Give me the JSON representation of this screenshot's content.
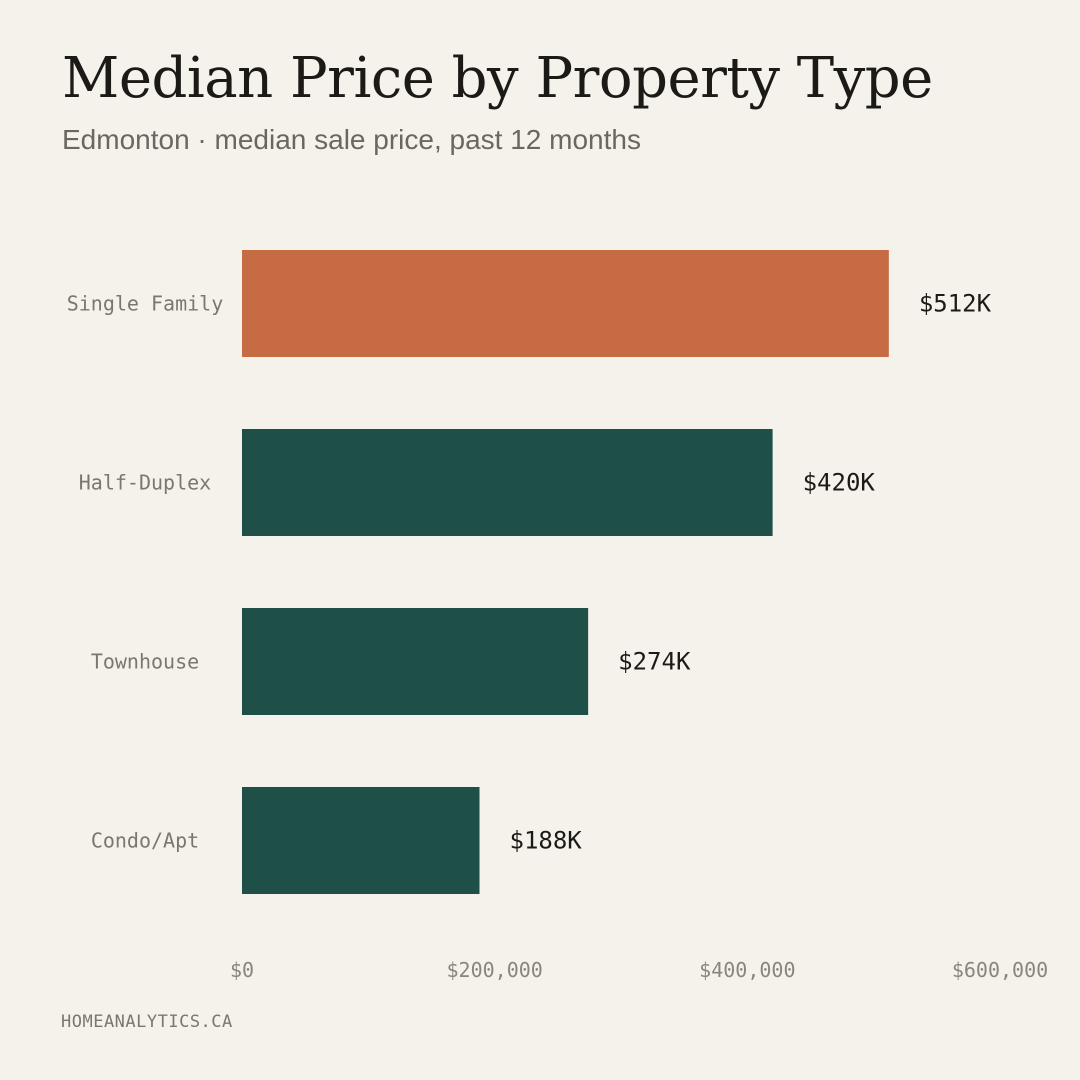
{
  "header": {
    "title": "Median Price by Property Type",
    "subtitle": "Edmonton · median sale price, past 12 months"
  },
  "footer": {
    "source": "HOMEANALYTICS.CA"
  },
  "colors": {
    "highlight": "#c76b45",
    "default": "#1e5048",
    "background": "#f5f1eb"
  },
  "chart_data": {
    "type": "bar",
    "orientation": "horizontal",
    "categories": [
      "Single Family",
      "Half-Duplex",
      "Townhouse",
      "Condo/Apt"
    ],
    "values": [
      512000,
      420000,
      274000,
      188000
    ],
    "value_labels": [
      "$512K",
      "$420K",
      "$274K",
      "$188K"
    ],
    "highlight_index": 0,
    "xlim": [
      0,
      600000
    ],
    "x_ticks": [
      0,
      200000,
      400000,
      600000
    ],
    "x_tick_labels": [
      "$0",
      "$200,000",
      "$400,000",
      "$600,000"
    ],
    "grid": false,
    "title": "Median Price by Property Type",
    "subtitle": "Edmonton · median sale price, past 12 months",
    "xlabel": "",
    "ylabel": ""
  }
}
